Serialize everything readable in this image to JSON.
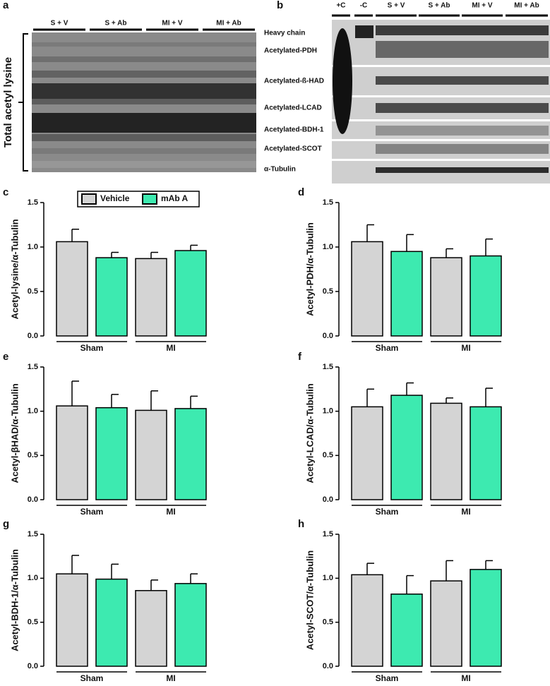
{
  "blots": {
    "a": {
      "panel": "a",
      "lanes": [
        "S + V",
        "S + Ab",
        "MI + V",
        "MI + Ab"
      ],
      "ylabel": "Total acetyl lysine"
    },
    "b": {
      "panel": "b",
      "lanes": [
        "+C",
        "-C",
        "S + V",
        "S + Ab",
        "MI + V",
        "MI + Ab"
      ],
      "rows": [
        "Heavy chain",
        "Acetylated-PDH",
        "Acetylated-ß-HAD",
        "Acetylated-LCAD",
        "Acetylated-BDH-1",
        "Acetylated-SCOT",
        "α-Tubulin"
      ]
    }
  },
  "chart_data": [
    {
      "type": "bar",
      "panel": "c",
      "ylabel": "Acetyl-lysine/α-Tubulin",
      "categories": [
        "Sham",
        "MI"
      ],
      "legend": "top",
      "series": [
        {
          "name": "Vehicle",
          "color": "#d4d4d4",
          "values": [
            1.06,
            0.87
          ],
          "errors": [
            0.14,
            0.07
          ]
        },
        {
          "name": "mAb A",
          "color": "#3deab0",
          "values": [
            0.88,
            0.96
          ],
          "errors": [
            0.06,
            0.06
          ]
        }
      ],
      "ylim": [
        0,
        1.5
      ],
      "yticks": [
        {
          "value": 0,
          "label": "0.0"
        },
        {
          "value": 0.5,
          "label": "0.5"
        },
        {
          "value": 1,
          "label": "1.0"
        },
        {
          "value": 1.5,
          "label": "1.5"
        }
      ]
    },
    {
      "type": "bar",
      "panel": "d",
      "ylabel": "Acetyl-PDH/α-Tubulin",
      "categories": [
        "Sham",
        "MI"
      ],
      "series": [
        {
          "color": "#d4d4d4",
          "values": [
            1.06,
            0.88
          ],
          "errors": [
            0.19,
            0.1
          ]
        },
        {
          "color": "#3deab0",
          "values": [
            0.95,
            0.9
          ],
          "errors": [
            0.19,
            0.19
          ]
        }
      ],
      "ylim": [
        0,
        1.5
      ],
      "yticks": [
        {
          "value": 0,
          "label": "0.0"
        },
        {
          "value": 0.5,
          "label": "0.5"
        },
        {
          "value": 1,
          "label": "1.0"
        },
        {
          "value": 1.5,
          "label": "1.5"
        }
      ]
    },
    {
      "type": "bar",
      "panel": "e",
      "ylabel": "Acetyl-βHAD/α-Tubulin",
      "categories": [
        "Sham",
        "MI"
      ],
      "series": [
        {
          "color": "#d4d4d4",
          "values": [
            1.06,
            1.01
          ],
          "errors": [
            0.28,
            0.22
          ]
        },
        {
          "color": "#3deab0",
          "values": [
            1.04,
            1.03
          ],
          "errors": [
            0.15,
            0.14
          ]
        }
      ],
      "ylim": [
        0,
        1.5
      ],
      "yticks": [
        {
          "value": 0,
          "label": "0.0"
        },
        {
          "value": 0.5,
          "label": "0.5"
        },
        {
          "value": 1,
          "label": "1.0"
        },
        {
          "value": 1.5,
          "label": "1.5"
        }
      ]
    },
    {
      "type": "bar",
      "panel": "f",
      "ylabel": "Acetyl-LCAD/α-Tubulin",
      "categories": [
        "Sham",
        "MI"
      ],
      "series": [
        {
          "color": "#d4d4d4",
          "values": [
            1.05,
            1.09
          ],
          "errors": [
            0.2,
            0.06
          ]
        },
        {
          "color": "#3deab0",
          "values": [
            1.18,
            1.05
          ],
          "errors": [
            0.14,
            0.21
          ]
        }
      ],
      "ylim": [
        0,
        1.5
      ],
      "yticks": [
        {
          "value": 0,
          "label": "0.0"
        },
        {
          "value": 0.5,
          "label": "0.5"
        },
        {
          "value": 1,
          "label": "1.0"
        },
        {
          "value": 1.5,
          "label": "1.5"
        }
      ]
    },
    {
      "type": "bar",
      "panel": "g",
      "ylabel": "Acetyl-BDH-1/α-Tubulin",
      "categories": [
        "Sham",
        "MI"
      ],
      "series": [
        {
          "color": "#d4d4d4",
          "values": [
            1.05,
            0.86
          ],
          "errors": [
            0.21,
            0.12
          ]
        },
        {
          "color": "#3deab0",
          "values": [
            0.99,
            0.94
          ],
          "errors": [
            0.17,
            0.11
          ]
        }
      ],
      "ylim": [
        0,
        1.5
      ],
      "yticks": [
        {
          "value": 0,
          "label": "0.0"
        },
        {
          "value": 0.5,
          "label": "0.5"
        },
        {
          "value": 1,
          "label": "1.0"
        },
        {
          "value": 1.5,
          "label": "1.5"
        }
      ]
    },
    {
      "type": "bar",
      "panel": "h",
      "ylabel": "Acetyl-SCOT/α-Tubulin",
      "categories": [
        "Sham",
        "MI"
      ],
      "series": [
        {
          "color": "#d4d4d4",
          "values": [
            1.04,
            0.97
          ],
          "errors": [
            0.13,
            0.23
          ]
        },
        {
          "color": "#3deab0",
          "values": [
            0.82,
            1.1
          ],
          "errors": [
            0.21,
            0.1
          ]
        }
      ],
      "ylim": [
        0,
        1.5
      ],
      "yticks": [
        {
          "value": 0,
          "label": "0.0"
        },
        {
          "value": 0.5,
          "label": "0.5"
        },
        {
          "value": 1,
          "label": "1.0"
        },
        {
          "value": 1.5,
          "label": "1.5"
        }
      ]
    }
  ]
}
